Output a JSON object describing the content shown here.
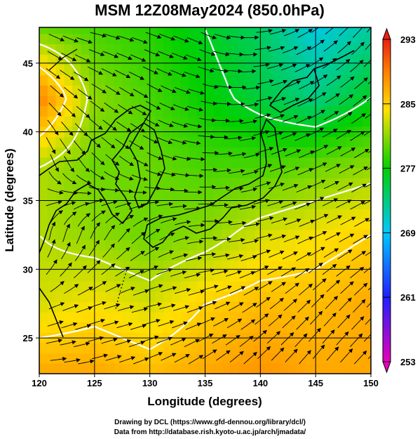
{
  "chart_data": {
    "type": "heatmap",
    "title": "MSM 12Z08May2024 (850.0hPa)",
    "xlabel": "Longitude (degrees)",
    "ylabel": "Latitude  (degrees)",
    "xlim": [
      120,
      150
    ],
    "ylim": [
      22.4,
      47.6
    ],
    "x_ticks": [
      120,
      125,
      130,
      135,
      140,
      145,
      150
    ],
    "y_ticks": [
      25,
      30,
      35,
      40,
      45
    ],
    "grid": true,
    "colorbar": {
      "range": [
        253,
        293
      ],
      "labels": [
        253,
        261,
        269,
        277,
        285,
        293
      ],
      "colors": [
        "#e600b8",
        "#2020ff",
        "#00c8ff",
        "#00d000",
        "#ffe000",
        "#ff8000",
        "#e82010"
      ]
    },
    "temperature_field_K": {
      "lon": [
        120,
        125,
        130,
        135,
        140,
        145,
        150
      ],
      "lat": [
        47.5,
        42.5,
        37.5,
        32.5,
        27.5,
        22.5
      ],
      "values": [
        [
          280,
          279,
          278,
          276,
          274,
          270,
          272
        ],
        [
          289,
          281,
          279,
          277,
          275,
          273,
          276
        ],
        [
          282,
          280,
          280,
          279,
          279,
          280,
          281
        ],
        [
          282,
          281,
          280,
          281,
          283,
          284,
          285
        ],
        [
          283,
          284,
          283,
          285,
          286,
          286,
          287
        ],
        [
          287,
          287,
          286,
          287,
          288,
          287,
          287
        ]
      ]
    },
    "wind_direction_deg": {
      "lon": [
        120,
        125,
        130,
        135,
        140,
        145,
        150
      ],
      "lat": [
        47.5,
        42.5,
        37.5,
        32.5,
        27.5,
        22.5
      ],
      "values": [
        [
          -20,
          -10,
          -15,
          -20,
          5,
          30,
          45
        ],
        [
          -40,
          -30,
          -25,
          -10,
          10,
          25,
          35
        ],
        [
          -70,
          -40,
          -20,
          0,
          15,
          20,
          25
        ],
        [
          80,
          60,
          30,
          0,
          10,
          20,
          25
        ],
        [
          20,
          15,
          10,
          15,
          30,
          40,
          40
        ],
        [
          0,
          10,
          20,
          30,
          40,
          45,
          40
        ]
      ]
    }
  },
  "credits": {
    "line1": "Drawing by DCL (https://www.gfd-dennou.org/library/dcl/)",
    "line2": "Data from http://database.rish.kyoto-u.ac.jp/arch/jmadata/"
  }
}
